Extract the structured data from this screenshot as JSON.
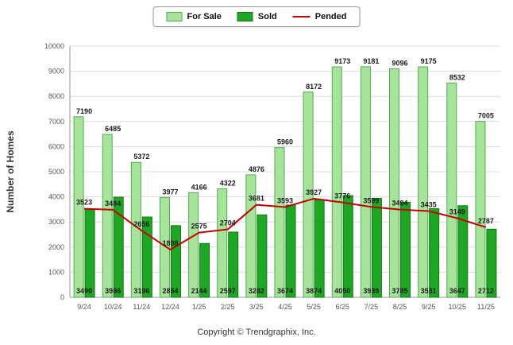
{
  "legend": [
    {
      "label": "For Sale"
    },
    {
      "label": "Sold"
    },
    {
      "label": "Pended"
    }
  ],
  "footer": "Copyright © Trendgraphix, Inc.",
  "chart_data": {
    "type": "bar",
    "title": "",
    "xlabel": "",
    "ylabel": "Number of Homes",
    "ylim": [
      0,
      10000
    ],
    "ytick_step": 1000,
    "grid": true,
    "legend_position": "top",
    "categories": [
      "9/24",
      "10/24",
      "11/24",
      "12/24",
      "1/25",
      "2/25",
      "3/25",
      "4/25",
      "5/25",
      "6/25",
      "7/25",
      "8/25",
      "9/25",
      "10/25",
      "11/25"
    ],
    "series": [
      {
        "name": "For Sale",
        "type": "bar",
        "color": "#a7e39b",
        "stroke": "#4fae4f",
        "values": [
          7190,
          6485,
          5372,
          3977,
          4166,
          4322,
          4876,
          5960,
          8172,
          9173,
          9181,
          9096,
          9175,
          8532,
          7005
        ]
      },
      {
        "name": "Sold",
        "type": "bar",
        "color": "#1fa624",
        "stroke": "#0d7a12",
        "values": [
          3490,
          3986,
          3196,
          2854,
          2144,
          2597,
          3282,
          3674,
          3874,
          4050,
          3939,
          3785,
          3531,
          3647,
          2712
        ]
      },
      {
        "name": "Pended",
        "type": "line",
        "color": "#cc0000",
        "values": [
          3523,
          3484,
          2656,
          1898,
          2575,
          2704,
          3681,
          3593,
          3927,
          3776,
          3599,
          3494,
          3435,
          3149,
          2787
        ]
      }
    ]
  }
}
